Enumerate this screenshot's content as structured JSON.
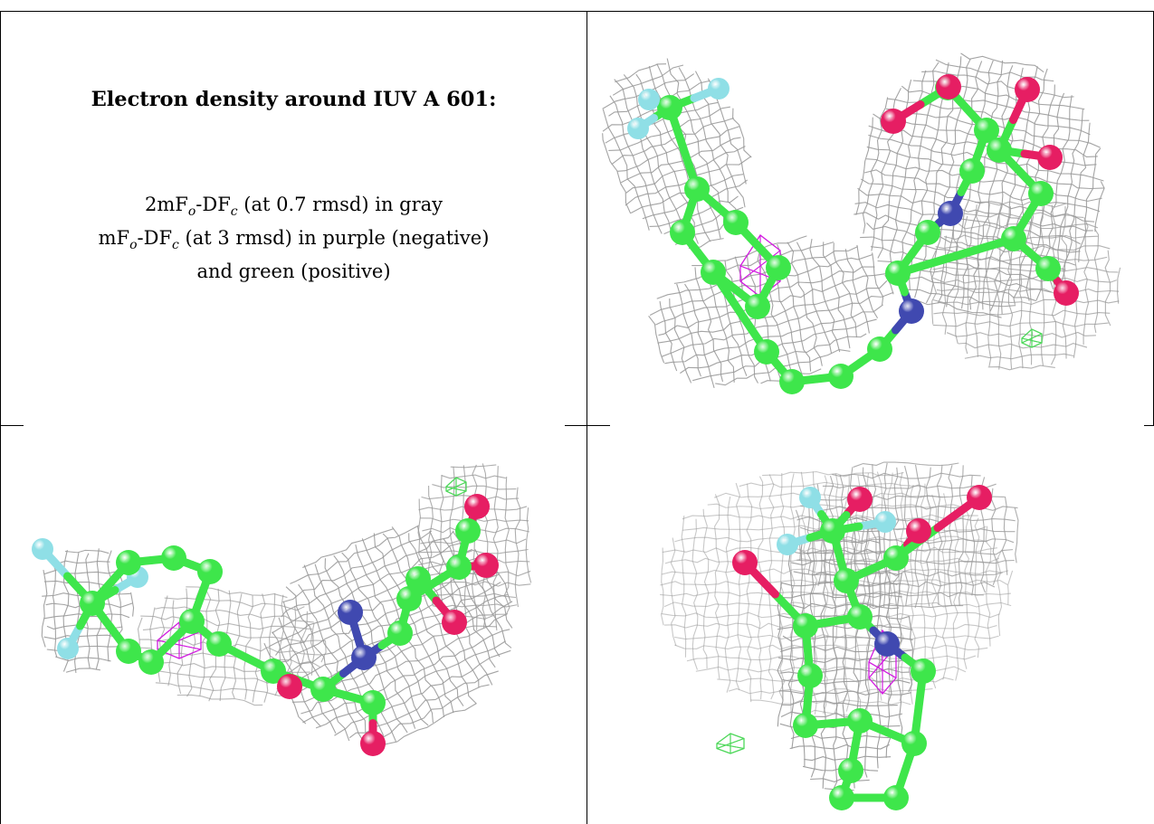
{
  "caption": {
    "title": "Electron density around IUV A 601:",
    "line1": {
      "prefix": "2mF",
      "sub1": "o",
      "mid": "-DF",
      "sub2": "c",
      "suffix": " (at 0.7 rmsd) in gray"
    },
    "line2": {
      "prefix": "mF",
      "sub1": "o",
      "mid": "-DF",
      "sub2": "c",
      "suffix": " (at 3 rmsd) in purple (negative)"
    },
    "line3": "and green (positive)"
  },
  "colors": {
    "carbon": "#3ee64b",
    "nitrogen": "#4049b0",
    "oxygen": "#e61e63",
    "fluorine": "#8fdfe6",
    "mesh_gray": "#9a9a9a",
    "mesh_negative": "#d21ce0",
    "mesh_positive": "#4ed85a",
    "border": "#000000"
  },
  "panels": [
    {
      "name": "view-top-right"
    },
    {
      "name": "view-bottom-left"
    },
    {
      "name": "view-bottom-right"
    }
  ]
}
